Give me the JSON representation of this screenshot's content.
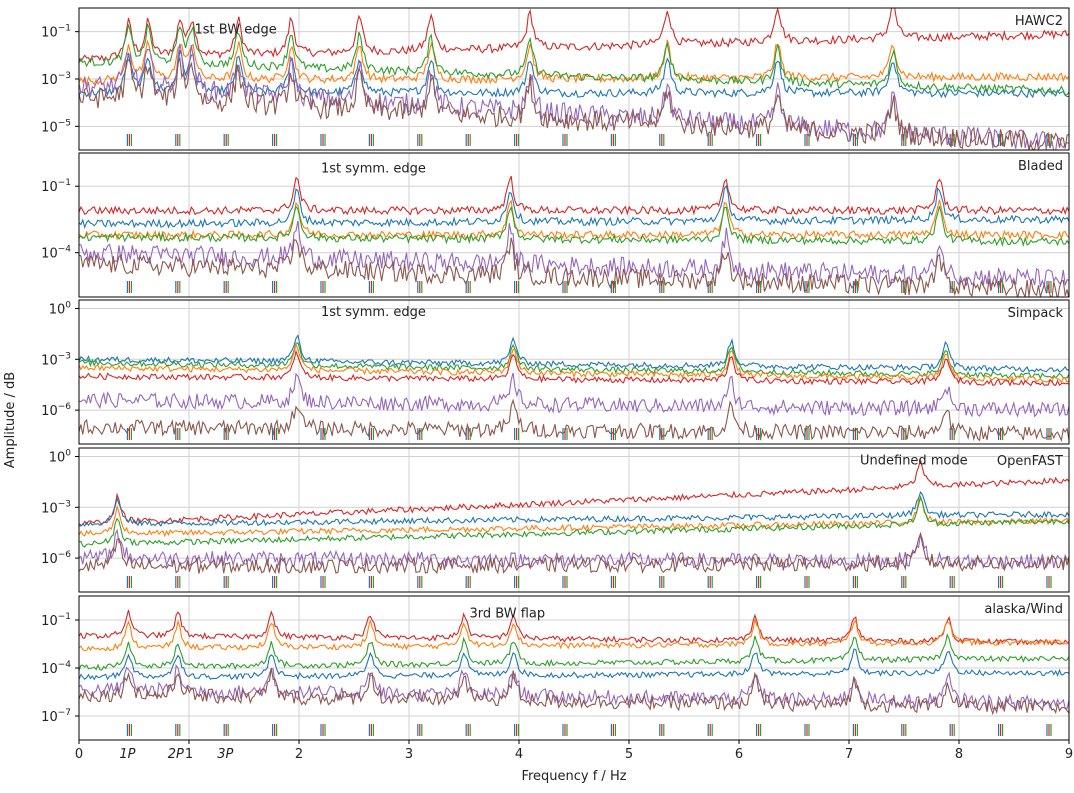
{
  "figure": {
    "ylabel": "Amplitude / dB",
    "xlabel": "Frequency f / Hz"
  },
  "chart_data": {
    "type": "line",
    "xscale": "linear",
    "yscale": "log",
    "xlim": [
      0,
      9
    ],
    "xticks": [
      0,
      1,
      2,
      3,
      4,
      5,
      6,
      7,
      8,
      9
    ],
    "grid": true,
    "harmonic_labels": [
      {
        "label": "1P",
        "x": 0.44
      },
      {
        "label": "2P",
        "x": 0.88
      },
      {
        "label": "3P",
        "x": 1.33
      }
    ],
    "series_colors": [
      "#d62728",
      "#1f77b4",
      "#ff7f0e",
      "#2ca02c",
      "#9467bd",
      "#8c564b"
    ],
    "panels": [
      {
        "name": "HAWC2",
        "ylim_exp": [
          -6,
          0
        ],
        "yticks_exp": [
          -5,
          -3,
          -1
        ],
        "annotation": {
          "text": "1st BW edge",
          "x": 1.05,
          "y_exp": -0.9
        },
        "peak_x": [
          0.45,
          0.63,
          0.92,
          1.03,
          1.45,
          1.93,
          2.55,
          3.2,
          4.1,
          5.35,
          6.35,
          7.4
        ],
        "levels": [
          {
            "color": "#d62728",
            "base_exp": -2.2,
            "rise": 1.1
          },
          {
            "color": "#1f77b4",
            "base_exp": -3.6,
            "rise": 0
          },
          {
            "color": "#ff7f0e",
            "base_exp": -3.1,
            "rise": 0.2
          },
          {
            "color": "#2ca02c",
            "base_exp": -2.3,
            "rise": -1.2
          },
          {
            "color": "#9467bd",
            "base_exp": -3.3,
            "rise": -2.4
          },
          {
            "color": "#8c564b",
            "base_exp": -3.8,
            "rise": -1.9
          }
        ]
      },
      {
        "name": "Bladed",
        "ylim_exp": [
          -6,
          0.5
        ],
        "yticks_exp": [
          -4,
          -1
        ],
        "annotation": {
          "text": "1st symm. edge",
          "x": 2.2,
          "y_exp": -0.2
        },
        "peak_x": [
          1.98,
          3.92,
          5.88,
          7.82
        ],
        "levels": [
          {
            "color": "#d62728",
            "base_exp": -2.1,
            "rise": 0
          },
          {
            "color": "#1f77b4",
            "base_exp": -2.7,
            "rise": 0.2
          },
          {
            "color": "#ff7f0e",
            "base_exp": -3.2,
            "rise": 0
          },
          {
            "color": "#2ca02c",
            "base_exp": -3.3,
            "rise": -0.2
          },
          {
            "color": "#9467bd",
            "base_exp": -4.0,
            "rise": -1.2
          },
          {
            "color": "#8c564b",
            "base_exp": -4.5,
            "rise": -1.2
          }
        ]
      },
      {
        "name": "Simpack",
        "ylim_exp": [
          -8,
          0.5
        ],
        "yticks_exp": [
          -6,
          -3,
          0
        ],
        "annotation": {
          "text": "1st symm. edge",
          "x": 2.2,
          "y_exp": -0.2
        },
        "peak_x": [
          1.98,
          3.95,
          5.93,
          7.88
        ],
        "levels": [
          {
            "color": "#1f77b4",
            "base_exp": -3.0,
            "rise": -0.6
          },
          {
            "color": "#2ca02c",
            "base_exp": -3.2,
            "rise": -0.8
          },
          {
            "color": "#ff7f0e",
            "base_exp": -3.5,
            "rise": -0.7
          },
          {
            "color": "#d62728",
            "base_exp": -4.0,
            "rise": -0.4
          },
          {
            "color": "#9467bd",
            "base_exp": -5.4,
            "rise": -0.6
          },
          {
            "color": "#8c564b",
            "base_exp": -7.0,
            "rise": -0.4
          }
        ]
      },
      {
        "name": "OpenFAST",
        "ylim_exp": [
          -8,
          0.5
        ],
        "yticks_exp": [
          -6,
          -3,
          0
        ],
        "annotation": {
          "text": "Undefined mode",
          "x": 7.1,
          "y_exp": -0.25
        },
        "peak_x": [
          0.35,
          7.65
        ],
        "levels": [
          {
            "color": "#d62728",
            "base_exp": -4.0,
            "rise": 2.6
          },
          {
            "color": "#1f77b4",
            "base_exp": -4.0,
            "rise": 0.6
          },
          {
            "color": "#ff7f0e",
            "base_exp": -4.6,
            "rise": 0.8
          },
          {
            "color": "#2ca02c",
            "base_exp": -5.2,
            "rise": 1.4
          },
          {
            "color": "#9467bd",
            "base_exp": -6.0,
            "rise": -0.2
          },
          {
            "color": "#8c564b",
            "base_exp": -6.5,
            "rise": 0.2
          }
        ]
      },
      {
        "name": "alaska/Wind",
        "ylim_exp": [
          -8.5,
          0.5
        ],
        "yticks_exp": [
          -7,
          -4,
          -1
        ],
        "annotation": {
          "text": "3rd BW flap",
          "x": 3.55,
          "y_exp": -0.6
        },
        "peak_x": [
          0.45,
          0.9,
          1.75,
          2.65,
          3.5,
          3.95,
          6.15,
          7.05,
          7.9
        ],
        "levels": [
          {
            "color": "#d62728",
            "base_exp": -2.0,
            "rise": -0.4
          },
          {
            "color": "#ff7f0e",
            "base_exp": -2.8,
            "rise": 0.4
          },
          {
            "color": "#2ca02c",
            "base_exp": -4.0,
            "rise": 0.6
          },
          {
            "color": "#1f77b4",
            "base_exp": -4.6,
            "rise": 0.3
          },
          {
            "color": "#9467bd",
            "base_exp": -5.4,
            "rise": -0.8
          },
          {
            "color": "#8c564b",
            "base_exp": -5.7,
            "rise": -0.8
          }
        ]
      }
    ]
  }
}
